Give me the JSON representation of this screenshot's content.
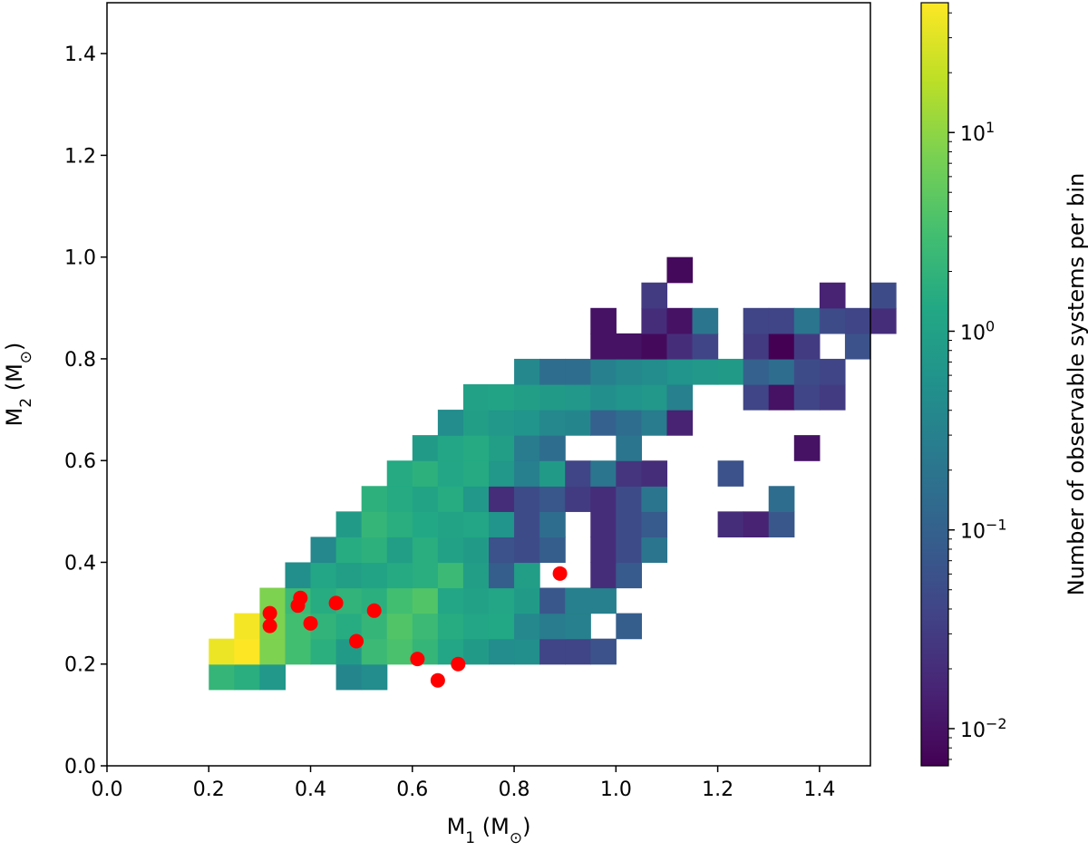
{
  "chart_data": {
    "type": "heatmap",
    "x_axis": {
      "label_main": "M",
      "label_sub": "1",
      "label_unit": " (M",
      "label_sun": "⊙",
      "label_close": ")",
      "range": [
        0.0,
        1.5
      ],
      "ticks": [
        "0.0",
        "0.2",
        "0.4",
        "0.6",
        "0.8",
        "1.0",
        "1.2",
        "1.4"
      ]
    },
    "y_axis": {
      "label_main": "M",
      "label_sub": "2",
      "label_unit": " (M",
      "label_sun": "⊙",
      "label_close": ")",
      "range": [
        0.0,
        1.5
      ],
      "ticks": [
        "0.0",
        "0.2",
        "0.4",
        "0.6",
        "0.8",
        "1.0",
        "1.2",
        "1.4"
      ]
    },
    "colorbar": {
      "label": "Number of observable systems per bin",
      "scale": "log",
      "range": [
        0.0065,
        45
      ],
      "ticks": [
        {
          "value": 0.01,
          "base": "10",
          "exp": "−2"
        },
        {
          "value": 0.1,
          "base": "10",
          "exp": "−1"
        },
        {
          "value": 1,
          "base": "10",
          "exp": "0"
        },
        {
          "value": 10,
          "base": "10",
          "exp": "1"
        }
      ],
      "colormap": "viridis"
    },
    "bin_size": 0.05,
    "grid": false,
    "bins": [
      {
        "x": 0.2,
        "y": 0.15,
        "v": 2.2
      },
      {
        "x": 0.25,
        "y": 0.15,
        "v": 1.6
      },
      {
        "x": 0.3,
        "y": 0.15,
        "v": 0.7
      },
      {
        "x": 0.45,
        "y": 0.15,
        "v": 0.35
      },
      {
        "x": 0.5,
        "y": 0.15,
        "v": 0.45
      },
      {
        "x": 0.2,
        "y": 0.2,
        "v": 35
      },
      {
        "x": 0.25,
        "y": 0.2,
        "v": 45
      },
      {
        "x": 0.3,
        "y": 0.2,
        "v": 8
      },
      {
        "x": 0.35,
        "y": 0.2,
        "v": 3
      },
      {
        "x": 0.4,
        "y": 0.2,
        "v": 1.7
      },
      {
        "x": 0.45,
        "y": 0.2,
        "v": 0.8
      },
      {
        "x": 0.5,
        "y": 0.2,
        "v": 2.5
      },
      {
        "x": 0.55,
        "y": 0.2,
        "v": 3.5
      },
      {
        "x": 0.6,
        "y": 0.2,
        "v": 2.2
      },
      {
        "x": 0.65,
        "y": 0.2,
        "v": 1.2
      },
      {
        "x": 0.7,
        "y": 0.2,
        "v": 0.8
      },
      {
        "x": 0.75,
        "y": 0.2,
        "v": 0.45
      },
      {
        "x": 0.8,
        "y": 0.2,
        "v": 0.5
      },
      {
        "x": 0.85,
        "y": 0.2,
        "v": 0.04
      },
      {
        "x": 0.9,
        "y": 0.2,
        "v": 0.04
      },
      {
        "x": 0.95,
        "y": 0.2,
        "v": 0.06
      },
      {
        "x": 0.25,
        "y": 0.25,
        "v": 40
      },
      {
        "x": 0.3,
        "y": 0.25,
        "v": 8
      },
      {
        "x": 0.35,
        "y": 0.25,
        "v": 3
      },
      {
        "x": 0.4,
        "y": 0.25,
        "v": 2
      },
      {
        "x": 0.45,
        "y": 0.25,
        "v": 1.5
      },
      {
        "x": 0.5,
        "y": 0.25,
        "v": 2.2
      },
      {
        "x": 0.55,
        "y": 0.25,
        "v": 4
      },
      {
        "x": 0.6,
        "y": 0.25,
        "v": 2.5
      },
      {
        "x": 0.65,
        "y": 0.25,
        "v": 1.5
      },
      {
        "x": 0.7,
        "y": 0.25,
        "v": 1.2
      },
      {
        "x": 0.75,
        "y": 0.25,
        "v": 1.3
      },
      {
        "x": 0.8,
        "y": 0.25,
        "v": 0.4
      },
      {
        "x": 0.85,
        "y": 0.25,
        "v": 0.25
      },
      {
        "x": 0.9,
        "y": 0.25,
        "v": 0.3
      },
      {
        "x": 1.0,
        "y": 0.25,
        "v": 0.09
      },
      {
        "x": 0.3,
        "y": 0.3,
        "v": 8
      },
      {
        "x": 0.35,
        "y": 0.3,
        "v": 2.5
      },
      {
        "x": 0.4,
        "y": 0.3,
        "v": 1.5
      },
      {
        "x": 0.45,
        "y": 0.3,
        "v": 2
      },
      {
        "x": 0.5,
        "y": 0.3,
        "v": 1.7
      },
      {
        "x": 0.55,
        "y": 0.3,
        "v": 3
      },
      {
        "x": 0.6,
        "y": 0.3,
        "v": 4
      },
      {
        "x": 0.65,
        "y": 0.3,
        "v": 1.2
      },
      {
        "x": 0.7,
        "y": 0.3,
        "v": 1
      },
      {
        "x": 0.75,
        "y": 0.3,
        "v": 1.2
      },
      {
        "x": 0.8,
        "y": 0.3,
        "v": 0.8
      },
      {
        "x": 0.85,
        "y": 0.3,
        "v": 0.07
      },
      {
        "x": 0.9,
        "y": 0.3,
        "v": 0.3
      },
      {
        "x": 0.95,
        "y": 0.3,
        "v": 0.3
      },
      {
        "x": 0.35,
        "y": 0.35,
        "v": 0.5
      },
      {
        "x": 0.4,
        "y": 0.35,
        "v": 1.2
      },
      {
        "x": 0.45,
        "y": 0.35,
        "v": 0.9
      },
      {
        "x": 0.5,
        "y": 0.35,
        "v": 1.1
      },
      {
        "x": 0.55,
        "y": 0.35,
        "v": 1.4
      },
      {
        "x": 0.6,
        "y": 0.35,
        "v": 1.6
      },
      {
        "x": 0.65,
        "y": 0.35,
        "v": 2.5
      },
      {
        "x": 0.7,
        "y": 0.35,
        "v": 0.9
      },
      {
        "x": 0.75,
        "y": 0.35,
        "v": 0.09
      },
      {
        "x": 0.8,
        "y": 0.35,
        "v": 0.9
      },
      {
        "x": 0.95,
        "y": 0.35,
        "v": 0.02
      },
      {
        "x": 1.0,
        "y": 0.35,
        "v": 0.08
      },
      {
        "x": 0.4,
        "y": 0.4,
        "v": 0.4
      },
      {
        "x": 0.45,
        "y": 0.4,
        "v": 1.5
      },
      {
        "x": 0.5,
        "y": 0.4,
        "v": 1.8
      },
      {
        "x": 0.55,
        "y": 0.4,
        "v": 0.9
      },
      {
        "x": 0.6,
        "y": 0.4,
        "v": 1.6
      },
      {
        "x": 0.65,
        "y": 0.4,
        "v": 1
      },
      {
        "x": 0.7,
        "y": 0.4,
        "v": 0.8
      },
      {
        "x": 0.75,
        "y": 0.4,
        "v": 0.06
      },
      {
        "x": 0.8,
        "y": 0.4,
        "v": 0.05
      },
      {
        "x": 0.85,
        "y": 0.4,
        "v": 0.09
      },
      {
        "x": 0.95,
        "y": 0.4,
        "v": 0.02
      },
      {
        "x": 1.0,
        "y": 0.4,
        "v": 0.05
      },
      {
        "x": 1.05,
        "y": 0.4,
        "v": 0.2
      },
      {
        "x": 0.45,
        "y": 0.45,
        "v": 0.8
      },
      {
        "x": 0.5,
        "y": 0.45,
        "v": 2.2
      },
      {
        "x": 0.55,
        "y": 0.45,
        "v": 1.6
      },
      {
        "x": 0.6,
        "y": 0.45,
        "v": 1.3
      },
      {
        "x": 0.65,
        "y": 0.45,
        "v": 1.1
      },
      {
        "x": 0.7,
        "y": 0.45,
        "v": 1.2
      },
      {
        "x": 0.75,
        "y": 0.45,
        "v": 0.6
      },
      {
        "x": 0.8,
        "y": 0.45,
        "v": 0.05
      },
      {
        "x": 0.85,
        "y": 0.45,
        "v": 0.15
      },
      {
        "x": 0.95,
        "y": 0.45,
        "v": 0.02
      },
      {
        "x": 1.0,
        "y": 0.45,
        "v": 0.05
      },
      {
        "x": 1.05,
        "y": 0.45,
        "v": 0.08
      },
      {
        "x": 1.2,
        "y": 0.45,
        "v": 0.02
      },
      {
        "x": 1.25,
        "y": 0.45,
        "v": 0.015
      },
      {
        "x": 1.3,
        "y": 0.45,
        "v": 0.07
      },
      {
        "x": 0.5,
        "y": 0.5,
        "v": 1.8
      },
      {
        "x": 0.55,
        "y": 0.5,
        "v": 1.4
      },
      {
        "x": 0.6,
        "y": 0.5,
        "v": 1.1
      },
      {
        "x": 0.65,
        "y": 0.5,
        "v": 1.5
      },
      {
        "x": 0.7,
        "y": 0.5,
        "v": 0.7
      },
      {
        "x": 0.75,
        "y": 0.5,
        "v": 0.02
      },
      {
        "x": 0.8,
        "y": 0.5,
        "v": 0.05
      },
      {
        "x": 0.85,
        "y": 0.5,
        "v": 0.07
      },
      {
        "x": 0.9,
        "y": 0.5,
        "v": 0.03
      },
      {
        "x": 0.95,
        "y": 0.5,
        "v": 0.02
      },
      {
        "x": 1.0,
        "y": 0.5,
        "v": 0.05
      },
      {
        "x": 1.05,
        "y": 0.5,
        "v": 0.2
      },
      {
        "x": 1.3,
        "y": 0.5,
        "v": 0.15
      },
      {
        "x": 0.55,
        "y": 0.55,
        "v": 1.4
      },
      {
        "x": 0.6,
        "y": 0.55,
        "v": 1.8
      },
      {
        "x": 0.65,
        "y": 0.55,
        "v": 1.2
      },
      {
        "x": 0.7,
        "y": 0.55,
        "v": 1.4
      },
      {
        "x": 0.75,
        "y": 0.55,
        "v": 0.7
      },
      {
        "x": 0.8,
        "y": 0.55,
        "v": 0.3
      },
      {
        "x": 0.85,
        "y": 0.55,
        "v": 0.8
      },
      {
        "x": 0.9,
        "y": 0.55,
        "v": 0.04
      },
      {
        "x": 0.95,
        "y": 0.55,
        "v": 0.2
      },
      {
        "x": 1.0,
        "y": 0.55,
        "v": 0.025
      },
      {
        "x": 1.05,
        "y": 0.55,
        "v": 0.02
      },
      {
        "x": 1.2,
        "y": 0.55,
        "v": 0.06
      },
      {
        "x": 0.6,
        "y": 0.6,
        "v": 0.8
      },
      {
        "x": 0.65,
        "y": 0.6,
        "v": 1.2
      },
      {
        "x": 0.7,
        "y": 0.6,
        "v": 1.4
      },
      {
        "x": 0.75,
        "y": 0.6,
        "v": 0.9
      },
      {
        "x": 0.8,
        "y": 0.6,
        "v": 0.25
      },
      {
        "x": 0.85,
        "y": 0.6,
        "v": 0.15
      },
      {
        "x": 1.0,
        "y": 0.6,
        "v": 0.2
      },
      {
        "x": 1.35,
        "y": 0.6,
        "v": 0.01
      },
      {
        "x": 0.65,
        "y": 0.65,
        "v": 0.45
      },
      {
        "x": 0.7,
        "y": 0.65,
        "v": 0.9
      },
      {
        "x": 0.75,
        "y": 0.65,
        "v": 0.7
      },
      {
        "x": 0.8,
        "y": 0.65,
        "v": 0.6
      },
      {
        "x": 0.85,
        "y": 0.65,
        "v": 0.4
      },
      {
        "x": 0.9,
        "y": 0.65,
        "v": 0.35
      },
      {
        "x": 0.95,
        "y": 0.65,
        "v": 0.1
      },
      {
        "x": 1.0,
        "y": 0.65,
        "v": 0.15
      },
      {
        "x": 1.05,
        "y": 0.65,
        "v": 0.25
      },
      {
        "x": 1.1,
        "y": 0.65,
        "v": 0.015
      },
      {
        "x": 0.7,
        "y": 0.7,
        "v": 1
      },
      {
        "x": 0.75,
        "y": 0.7,
        "v": 1.1
      },
      {
        "x": 0.8,
        "y": 0.7,
        "v": 0.9
      },
      {
        "x": 0.85,
        "y": 0.7,
        "v": 0.8
      },
      {
        "x": 0.9,
        "y": 0.7,
        "v": 0.7
      },
      {
        "x": 0.95,
        "y": 0.7,
        "v": 0.5
      },
      {
        "x": 1.0,
        "y": 0.7,
        "v": 0.6
      },
      {
        "x": 1.05,
        "y": 0.7,
        "v": 0.7
      },
      {
        "x": 1.1,
        "y": 0.7,
        "v": 0.3
      },
      {
        "x": 1.25,
        "y": 0.7,
        "v": 0.04
      },
      {
        "x": 1.3,
        "y": 0.7,
        "v": 0.01
      },
      {
        "x": 1.35,
        "y": 0.7,
        "v": 0.04
      },
      {
        "x": 1.4,
        "y": 0.7,
        "v": 0.03
      },
      {
        "x": 0.8,
        "y": 0.75,
        "v": 0.4
      },
      {
        "x": 0.85,
        "y": 0.75,
        "v": 0.15
      },
      {
        "x": 0.9,
        "y": 0.75,
        "v": 0.15
      },
      {
        "x": 0.95,
        "y": 0.75,
        "v": 0.3
      },
      {
        "x": 1.0,
        "y": 0.75,
        "v": 0.4
      },
      {
        "x": 1.05,
        "y": 0.75,
        "v": 0.45
      },
      {
        "x": 1.1,
        "y": 0.75,
        "v": 0.6
      },
      {
        "x": 1.15,
        "y": 0.75,
        "v": 0.7
      },
      {
        "x": 1.2,
        "y": 0.75,
        "v": 0.8
      },
      {
        "x": 1.25,
        "y": 0.75,
        "v": 0.1
      },
      {
        "x": 1.3,
        "y": 0.75,
        "v": 0.15
      },
      {
        "x": 1.35,
        "y": 0.75,
        "v": 0.05
      },
      {
        "x": 1.4,
        "y": 0.75,
        "v": 0.04
      },
      {
        "x": 0.95,
        "y": 0.8,
        "v": 0.01
      },
      {
        "x": 1.0,
        "y": 0.8,
        "v": 0.01
      },
      {
        "x": 1.05,
        "y": 0.8,
        "v": 0.008
      },
      {
        "x": 1.1,
        "y": 0.8,
        "v": 0.02
      },
      {
        "x": 1.15,
        "y": 0.8,
        "v": 0.04
      },
      {
        "x": 1.25,
        "y": 0.8,
        "v": 0.03
      },
      {
        "x": 1.3,
        "y": 0.8,
        "v": 0.0065
      },
      {
        "x": 1.35,
        "y": 0.8,
        "v": 0.03
      },
      {
        "x": 1.45,
        "y": 0.8,
        "v": 0.06
      },
      {
        "x": 0.95,
        "y": 0.85,
        "v": 0.01
      },
      {
        "x": 1.05,
        "y": 0.85,
        "v": 0.02
      },
      {
        "x": 1.1,
        "y": 0.85,
        "v": 0.01
      },
      {
        "x": 1.15,
        "y": 0.85,
        "v": 0.2
      },
      {
        "x": 1.25,
        "y": 0.85,
        "v": 0.04
      },
      {
        "x": 1.3,
        "y": 0.85,
        "v": 0.04
      },
      {
        "x": 1.35,
        "y": 0.85,
        "v": 0.2
      },
      {
        "x": 1.4,
        "y": 0.85,
        "v": 0.05
      },
      {
        "x": 1.45,
        "y": 0.85,
        "v": 0.04
      },
      {
        "x": 1.5,
        "y": 0.85,
        "v": 0.02
      },
      {
        "x": 1.05,
        "y": 0.9,
        "v": 0.03
      },
      {
        "x": 1.4,
        "y": 0.9,
        "v": 0.015
      },
      {
        "x": 1.5,
        "y": 0.9,
        "v": 0.05
      },
      {
        "x": 1.1,
        "y": 0.95,
        "v": 0.008
      }
    ],
    "points": [
      {
        "x": 0.32,
        "y": 0.3
      },
      {
        "x": 0.32,
        "y": 0.275
      },
      {
        "x": 0.375,
        "y": 0.315
      },
      {
        "x": 0.38,
        "y": 0.33
      },
      {
        "x": 0.4,
        "y": 0.28
      },
      {
        "x": 0.45,
        "y": 0.32
      },
      {
        "x": 0.49,
        "y": 0.245
      },
      {
        "x": 0.525,
        "y": 0.305
      },
      {
        "x": 0.61,
        "y": 0.21
      },
      {
        "x": 0.65,
        "y": 0.168
      },
      {
        "x": 0.69,
        "y": 0.2
      },
      {
        "x": 0.89,
        "y": 0.378
      }
    ],
    "point_color": "#ff0000"
  }
}
